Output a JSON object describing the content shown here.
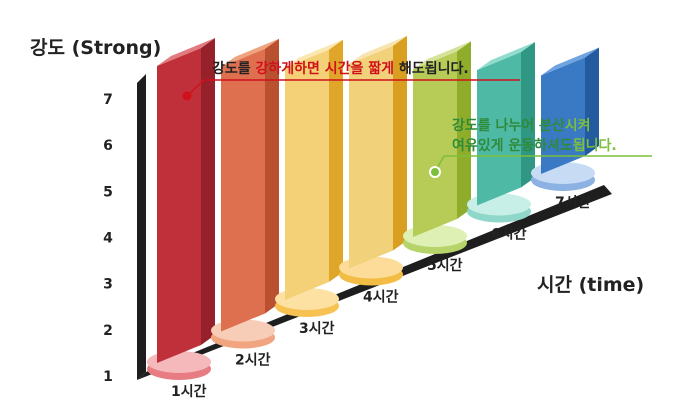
{
  "chart_data": {
    "type": "bar",
    "ylabel": "강도 (Strong)",
    "xlabel": "시간 (time)",
    "yticks": [
      "1",
      "2",
      "3",
      "4",
      "5",
      "6",
      "7"
    ],
    "ylim": [
      1,
      7
    ],
    "categories": [
      "1시간",
      "2시간",
      "3시간",
      "4시간",
      "5시간",
      "6시간",
      "7시간"
    ],
    "values": [
      7,
      6.3,
      5.6,
      5.0,
      4.2,
      3.5,
      2.7
    ],
    "colors": {
      "front": [
        "#c0303a",
        "#de6f4f",
        "#f4d176",
        "#f1d27a",
        "#b7cb57",
        "#4ebaa6",
        "#3a79c4"
      ],
      "side": [
        "#97212b",
        "#b9502f",
        "#e0a62a",
        "#d99f20",
        "#8fad2a",
        "#2f9783",
        "#245a9f"
      ],
      "top": [
        "#e27b80",
        "#f0a37f",
        "#fbe7b0",
        "#f8e4ae",
        "#d5e39a",
        "#92dccd",
        "#6fa4e0"
      ],
      "base": [
        "#e77c83",
        "#f0a47f",
        "#f7c252",
        "#f3bd45",
        "#b6d46a",
        "#8fd7c9",
        "#8bb2e2"
      ],
      "baseTop": [
        "#f5b9bc",
        "#f8cdb7",
        "#fde1a3",
        "#fcdc98",
        "#def0b4",
        "#c8efe7",
        "#c7dcf4"
      ]
    },
    "annotations": [
      {
        "segments": [
          {
            "text": "강도를 ",
            "color": "#222222"
          },
          {
            "text": "강하게하면 시간을 짧게",
            "color": "#d0111b"
          },
          {
            "text": " 해도됩니다.",
            "color": "#222222"
          }
        ]
      },
      {
        "line1": [
          {
            "text": "강도를 나누어 분산",
            "color": "#2e8b3a"
          },
          {
            "text": "시켜",
            "color": "#7bbf3a"
          }
        ],
        "line2": [
          {
            "text": "여유있게 운동하셔도",
            "color": "#2e8b3a"
          },
          {
            "text": "됩니다.",
            "color": "#7bbf3a"
          }
        ]
      }
    ]
  }
}
